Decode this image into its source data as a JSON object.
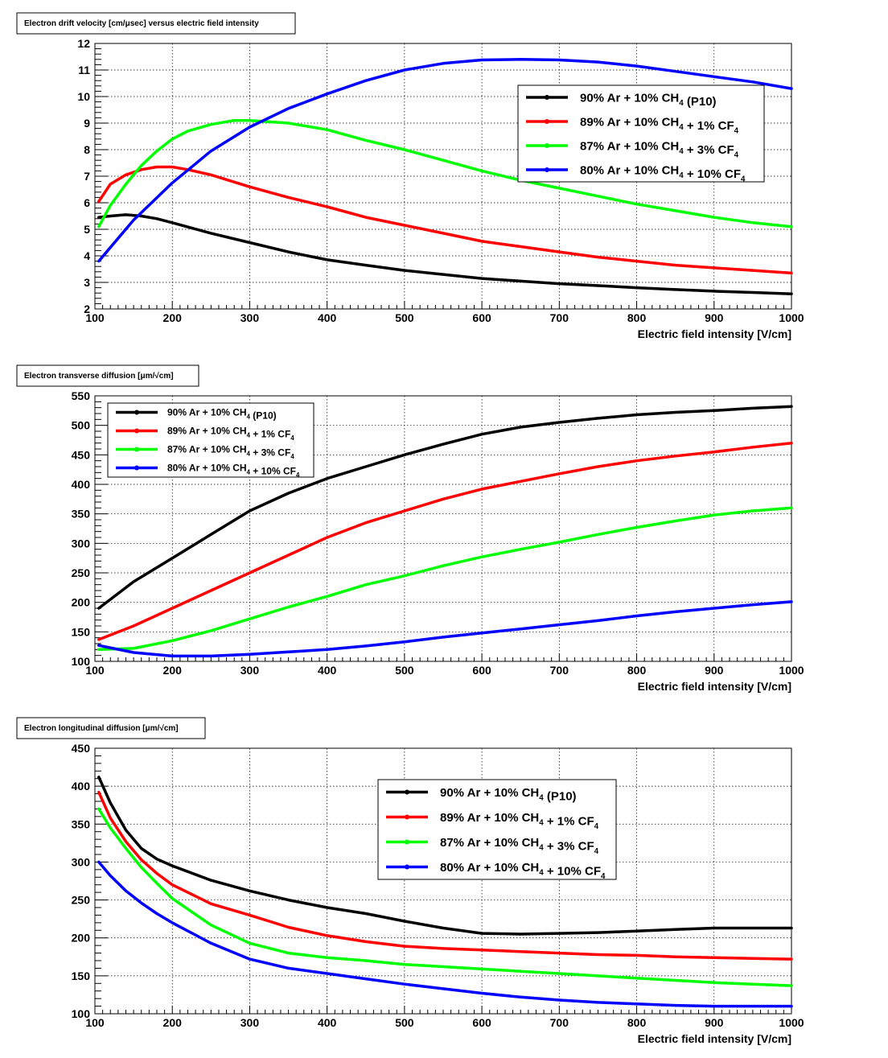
{
  "colors": {
    "s1": "#000000",
    "s2": "#ff0000",
    "s3": "#00ff00",
    "s4": "#0000ff"
  },
  "chart_data": [
    {
      "type": "line",
      "title": "Electron drift velocity [cm/μsec] versus electric field intensity",
      "xlabel": "Electric field intensity [V/cm]",
      "ylabel": "",
      "xlim": [
        100,
        1000
      ],
      "ylim": [
        2,
        12
      ],
      "xticks": [
        100,
        200,
        300,
        400,
        500,
        600,
        700,
        800,
        900,
        1000
      ],
      "yticks": [
        2,
        3,
        4,
        5,
        6,
        7,
        8,
        9,
        10,
        11,
        12
      ],
      "grid": true,
      "legend_position": "top-right",
      "series": [
        {
          "name": "90% Ar + 10% CH4 (P10)",
          "color_key": "s1",
          "x": [
            105,
            120,
            140,
            160,
            180,
            200,
            250,
            300,
            350,
            400,
            450,
            500,
            550,
            600,
            650,
            700,
            750,
            800,
            850,
            900,
            950,
            1000
          ],
          "y": [
            5.45,
            5.5,
            5.55,
            5.5,
            5.4,
            5.25,
            4.85,
            4.5,
            4.15,
            3.85,
            3.65,
            3.45,
            3.3,
            3.15,
            3.05,
            2.95,
            2.88,
            2.8,
            2.73,
            2.67,
            2.62,
            2.57
          ]
        },
        {
          "name": "89% Ar + 10% CH4 + 1% CF4",
          "color_key": "s2",
          "x": [
            105,
            120,
            140,
            160,
            180,
            200,
            220,
            250,
            300,
            350,
            400,
            450,
            500,
            550,
            600,
            650,
            700,
            750,
            800,
            850,
            900,
            950,
            1000
          ],
          "y": [
            6.05,
            6.7,
            7.05,
            7.25,
            7.35,
            7.35,
            7.25,
            7.05,
            6.6,
            6.2,
            5.85,
            5.45,
            5.15,
            4.85,
            4.55,
            4.35,
            4.15,
            3.95,
            3.8,
            3.65,
            3.55,
            3.45,
            3.35
          ]
        },
        {
          "name": "87% Ar + 10% CH4 + 3% CF4",
          "color_key": "s3",
          "x": [
            105,
            120,
            140,
            160,
            180,
            200,
            220,
            250,
            280,
            300,
            350,
            400,
            450,
            500,
            550,
            600,
            650,
            700,
            750,
            800,
            850,
            900,
            950,
            1000
          ],
          "y": [
            5.1,
            5.9,
            6.7,
            7.4,
            7.95,
            8.4,
            8.7,
            8.95,
            9.1,
            9.1,
            9.0,
            8.75,
            8.35,
            8.0,
            7.6,
            7.2,
            6.85,
            6.55,
            6.25,
            5.95,
            5.7,
            5.45,
            5.25,
            5.1
          ]
        },
        {
          "name": "80% Ar + 10% CH4 + 10% CF4",
          "color_key": "s4",
          "x": [
            105,
            150,
            200,
            250,
            300,
            350,
            400,
            450,
            500,
            550,
            600,
            650,
            700,
            750,
            800,
            850,
            900,
            950,
            1000
          ],
          "y": [
            3.8,
            5.35,
            6.75,
            7.95,
            8.85,
            9.55,
            10.1,
            10.6,
            11.0,
            11.25,
            11.38,
            11.4,
            11.38,
            11.3,
            11.15,
            10.95,
            10.75,
            10.55,
            10.3
          ]
        }
      ]
    },
    {
      "type": "line",
      "title": "Electron transverse diffusion [μm/√cm]",
      "xlabel": "Electric field intensity [V/cm]",
      "ylabel": "",
      "xlim": [
        100,
        1000
      ],
      "ylim": [
        100,
        550
      ],
      "xticks": [
        100,
        200,
        300,
        400,
        500,
        600,
        700,
        800,
        900,
        1000
      ],
      "yticks": [
        100,
        150,
        200,
        250,
        300,
        350,
        400,
        450,
        500,
        550
      ],
      "grid": true,
      "legend_position": "top-left",
      "series": [
        {
          "name": "90% Ar + 10% CH4 (P10)",
          "color_key": "s1",
          "x": [
            105,
            150,
            200,
            250,
            300,
            350,
            400,
            450,
            500,
            550,
            600,
            650,
            700,
            750,
            800,
            850,
            900,
            950,
            1000
          ],
          "y": [
            190,
            235,
            275,
            315,
            355,
            385,
            410,
            430,
            450,
            468,
            485,
            497,
            505,
            512,
            518,
            522,
            525,
            529,
            532
          ]
        },
        {
          "name": "89% Ar + 10% CH4 + 1% CF4",
          "color_key": "s2",
          "x": [
            105,
            150,
            200,
            250,
            300,
            350,
            400,
            450,
            500,
            550,
            600,
            650,
            700,
            750,
            800,
            850,
            900,
            950,
            1000
          ],
          "y": [
            137,
            160,
            190,
            220,
            250,
            280,
            310,
            335,
            355,
            375,
            392,
            405,
            418,
            430,
            440,
            448,
            455,
            463,
            470
          ]
        },
        {
          "name": "87% Ar + 10% CH4 + 3% CF4",
          "color_key": "s3",
          "x": [
            105,
            150,
            200,
            250,
            300,
            350,
            400,
            450,
            500,
            550,
            600,
            650,
            700,
            750,
            800,
            850,
            900,
            950,
            1000
          ],
          "y": [
            120,
            122,
            135,
            152,
            172,
            192,
            210,
            230,
            245,
            262,
            277,
            290,
            302,
            315,
            327,
            338,
            348,
            355,
            360
          ]
        },
        {
          "name": "80% Ar + 10% CH4 + 10% CF4",
          "color_key": "s4",
          "x": [
            105,
            150,
            200,
            250,
            300,
            350,
            400,
            450,
            500,
            550,
            600,
            650,
            700,
            750,
            800,
            850,
            900,
            950,
            1000
          ],
          "y": [
            127,
            115,
            109,
            109,
            112,
            116,
            120,
            126,
            133,
            141,
            148,
            155,
            162,
            169,
            177,
            184,
            190,
            196,
            201
          ]
        }
      ]
    },
    {
      "type": "line",
      "title": "Electron longitudinal diffusion [μm/√cm]",
      "xlabel": "Electric field intensity [V/cm]",
      "ylabel": "",
      "xlim": [
        100,
        1000
      ],
      "ylim": [
        100,
        450
      ],
      "xticks": [
        100,
        200,
        300,
        400,
        500,
        600,
        700,
        800,
        900,
        1000
      ],
      "yticks": [
        100,
        150,
        200,
        250,
        300,
        350,
        400,
        450
      ],
      "grid": true,
      "legend_position": "top-center",
      "series": [
        {
          "name": "90% Ar + 10% CH4 (P10)",
          "color_key": "s1",
          "x": [
            105,
            120,
            140,
            160,
            180,
            200,
            250,
            300,
            350,
            400,
            450,
            500,
            550,
            600,
            650,
            700,
            750,
            800,
            850,
            900,
            950,
            1000
          ],
          "y": [
            412,
            378,
            342,
            318,
            304,
            295,
            276,
            262,
            250,
            240,
            232,
            222,
            213,
            206,
            205,
            206,
            207,
            209,
            211,
            213,
            213,
            213
          ]
        },
        {
          "name": "89% Ar + 10% CH4 + 1% CF4",
          "color_key": "s2",
          "x": [
            105,
            120,
            140,
            160,
            180,
            200,
            250,
            300,
            350,
            400,
            450,
            500,
            550,
            600,
            650,
            700,
            750,
            800,
            850,
            900,
            950,
            1000
          ],
          "y": [
            392,
            358,
            327,
            303,
            285,
            270,
            245,
            230,
            214,
            203,
            195,
            189,
            186,
            184,
            182,
            180,
            178,
            177,
            175,
            174,
            173,
            172
          ]
        },
        {
          "name": "87% Ar + 10% CH4 + 3% CF4",
          "color_key": "s3",
          "x": [
            105,
            120,
            140,
            160,
            180,
            200,
            250,
            300,
            350,
            400,
            450,
            500,
            550,
            600,
            650,
            700,
            750,
            800,
            850,
            900,
            950,
            1000
          ],
          "y": [
            370,
            345,
            318,
            293,
            272,
            252,
            217,
            193,
            180,
            174,
            170,
            165,
            162,
            159,
            156,
            153,
            150,
            147,
            144,
            141,
            139,
            137
          ]
        },
        {
          "name": "80% Ar + 10% CH4 + 10% CF4",
          "color_key": "s4",
          "x": [
            105,
            120,
            140,
            160,
            180,
            200,
            250,
            300,
            350,
            400,
            450,
            500,
            550,
            600,
            650,
            700,
            750,
            800,
            850,
            900,
            950,
            1000
          ],
          "y": [
            300,
            282,
            262,
            246,
            232,
            220,
            193,
            172,
            160,
            153,
            146,
            139,
            133,
            127,
            122,
            118,
            115,
            113,
            111,
            110,
            110,
            110
          ]
        }
      ]
    }
  ]
}
